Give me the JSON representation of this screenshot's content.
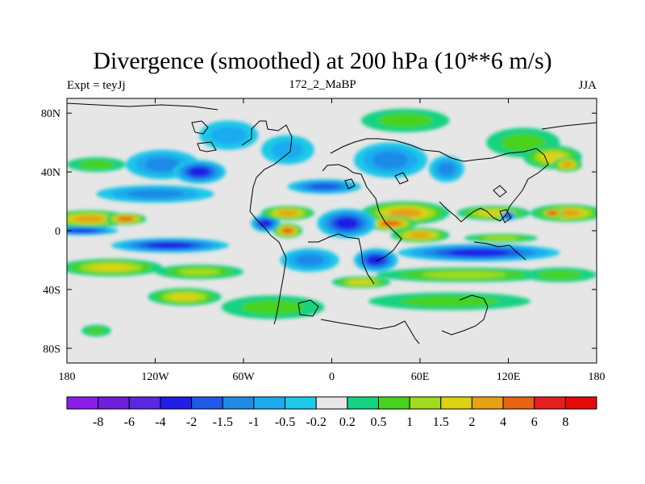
{
  "chart_data": {
    "type": "heatmap",
    "title": "Divergence (smoothed) at 200 hPa (10**6 m/s)",
    "subtitle_left": "Expt = teyJj",
    "subtitle_center": "172_2_MaBP",
    "subtitle_right": "JJA",
    "x_range": [
      -180,
      180
    ],
    "y_range": [
      -90,
      90
    ],
    "x_ticks": [
      {
        "value": -180,
        "label": "180"
      },
      {
        "value": -120,
        "label": "120W"
      },
      {
        "value": -60,
        "label": "60W"
      },
      {
        "value": 0,
        "label": "0"
      },
      {
        "value": 60,
        "label": "60E"
      },
      {
        "value": 120,
        "label": "120E"
      },
      {
        "value": 180,
        "label": "180"
      }
    ],
    "y_ticks": [
      {
        "value": 80,
        "label": "80N"
      },
      {
        "value": 40,
        "label": "40N"
      },
      {
        "value": 0,
        "label": "0"
      },
      {
        "value": -40,
        "label": "40S"
      },
      {
        "value": -80,
        "label": "80S"
      }
    ],
    "levels": [
      "-8",
      "-6",
      "-4",
      "-2",
      "-1.5",
      "-1",
      "-0.5",
      "-0.2",
      "0.2",
      "0.5",
      "1",
      "1.5",
      "2",
      "4",
      "6",
      "8"
    ],
    "colors": [
      "#8a1ee8",
      "#6e1ed8",
      "#5a28e0",
      "#1e1ee6",
      "#1e5ae6",
      "#1e8ae6",
      "#1eaaee",
      "#1ec8e8",
      "#e6e6e6",
      "#14d282",
      "#46d21e",
      "#a0dc1e",
      "#dcd214",
      "#e6a014",
      "#e66414",
      "#e61e1e",
      "#e60a0a"
    ],
    "features": [
      {
        "lon": -165,
        "lat": 8,
        "rx": 28,
        "ry": 6,
        "value": 3
      },
      {
        "lon": -140,
        "lat": 8,
        "rx": 14,
        "ry": 4,
        "value": 5
      },
      {
        "lon": -170,
        "lat": 0,
        "rx": 25,
        "ry": 3,
        "value": -2.5
      },
      {
        "lon": -110,
        "lat": -10,
        "rx": 40,
        "ry": 5,
        "value": -3
      },
      {
        "lon": -150,
        "lat": -25,
        "rx": 35,
        "ry": 6,
        "value": 1.8
      },
      {
        "lon": -90,
        "lat": -28,
        "rx": 30,
        "ry": 5,
        "value": 1.3
      },
      {
        "lon": -120,
        "lat": 25,
        "rx": 40,
        "ry": 6,
        "value": -1
      },
      {
        "lon": -160,
        "lat": 45,
        "rx": 20,
        "ry": 5,
        "value": 0.8
      },
      {
        "lon": -115,
        "lat": 45,
        "rx": 25,
        "ry": 10,
        "value": -1.2
      },
      {
        "lon": -90,
        "lat": 40,
        "rx": 18,
        "ry": 8,
        "value": -2.2
      },
      {
        "lon": -70,
        "lat": 65,
        "rx": 20,
        "ry": 10,
        "value": -0.7
      },
      {
        "lon": -30,
        "lat": 55,
        "rx": 18,
        "ry": 10,
        "value": -0.8
      },
      {
        "lon": 40,
        "lat": 48,
        "rx": 25,
        "ry": 12,
        "value": -1.2
      },
      {
        "lon": 50,
        "lat": 75,
        "rx": 30,
        "ry": 8,
        "value": 0.8
      },
      {
        "lon": 130,
        "lat": 60,
        "rx": 25,
        "ry": 10,
        "value": 0.9
      },
      {
        "lon": 150,
        "lat": 50,
        "rx": 20,
        "ry": 8,
        "value": 1.5
      },
      {
        "lon": 160,
        "lat": 45,
        "rx": 10,
        "ry": 5,
        "value": 3
      },
      {
        "lon": 78,
        "lat": 42,
        "rx": 12,
        "ry": 9,
        "value": -1
      },
      {
        "lon": -5,
        "lat": 30,
        "rx": 25,
        "ry": 5,
        "value": -1.7
      },
      {
        "lon": 50,
        "lat": 12,
        "rx": 30,
        "ry": 8,
        "value": 3
      },
      {
        "lon": 40,
        "lat": 5,
        "rx": 18,
        "ry": 5,
        "value": 5
      },
      {
        "lon": 60,
        "lat": -3,
        "rx": 20,
        "ry": 5,
        "value": 3.5
      },
      {
        "lon": 110,
        "lat": 12,
        "rx": 25,
        "ry": 5,
        "value": 1.8
      },
      {
        "lon": 160,
        "lat": 12,
        "rx": 25,
        "ry": 6,
        "value": 3
      },
      {
        "lon": 150,
        "lat": 12,
        "rx": 8,
        "ry": 3,
        "value": 6
      },
      {
        "lon": 120,
        "lat": 10,
        "rx": 5,
        "ry": 3,
        "value": -3
      },
      {
        "lon": -45,
        "lat": 5,
        "rx": 10,
        "ry": 6,
        "value": -2
      },
      {
        "lon": -30,
        "lat": 0,
        "rx": 10,
        "ry": 5,
        "value": 4
      },
      {
        "lon": -30,
        "lat": 12,
        "rx": 18,
        "ry": 5,
        "value": 2
      },
      {
        "lon": 10,
        "lat": 5,
        "rx": 20,
        "ry": 10,
        "value": -2.5
      },
      {
        "lon": -15,
        "lat": -20,
        "rx": 20,
        "ry": 8,
        "value": -1
      },
      {
        "lon": 30,
        "lat": -20,
        "rx": 15,
        "ry": 8,
        "value": -3
      },
      {
        "lon": 100,
        "lat": -15,
        "rx": 55,
        "ry": 6,
        "value": -3
      },
      {
        "lon": 90,
        "lat": -30,
        "rx": 60,
        "ry": 5,
        "value": 1.2
      },
      {
        "lon": 155,
        "lat": -30,
        "rx": 25,
        "ry": 5,
        "value": 0.8
      },
      {
        "lon": -40,
        "lat": -52,
        "rx": 35,
        "ry": 8,
        "value": 0.9
      },
      {
        "lon": 80,
        "lat": -48,
        "rx": 55,
        "ry": 6,
        "value": 0.7
      },
      {
        "lon": -100,
        "lat": -45,
        "rx": 25,
        "ry": 6,
        "value": 1.5
      },
      {
        "lon": 115,
        "lat": -5,
        "rx": 25,
        "ry": 3,
        "value": 1.2
      },
      {
        "lon": 20,
        "lat": -35,
        "rx": 20,
        "ry": 4,
        "value": 1.5
      },
      {
        "lon": -160,
        "lat": -68,
        "rx": 10,
        "ry": 4,
        "value": 0.8
      }
    ]
  }
}
